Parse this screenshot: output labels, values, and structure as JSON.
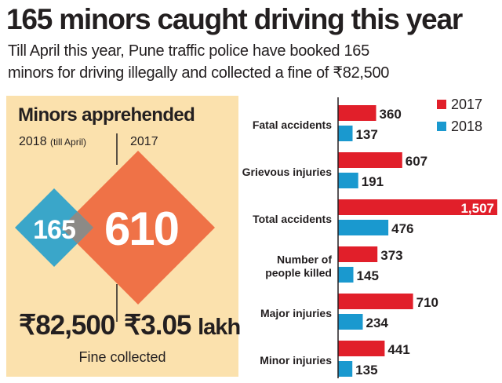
{
  "headline": "165 minors caught driving this year",
  "subheadline": {
    "line1": "Till April this year, Pune traffic police have booked 165",
    "line2": "minors for driving illegally and collected a fine of ₹82,500"
  },
  "panel": {
    "title": "Minors apprehended",
    "year_2018": "2018",
    "year_2018_note": "(till April)",
    "year_2017": "2017",
    "count_2018": "165",
    "count_2017": "610",
    "fine_2018": "₹82,500",
    "fine_2017_amount": "₹3.05",
    "fine_2017_unit": "lakh",
    "fine_label": "Fine collected",
    "colors": {
      "diamond_2018": "#3aa6c9",
      "diamond_2017": "#ef7247",
      "overlap": "#8c8a86",
      "background": "#fbe1ad"
    }
  },
  "chart_data": {
    "type": "bar",
    "orientation": "horizontal",
    "categories": [
      [
        "Fatal accidents"
      ],
      [
        "Grievous injuries"
      ],
      [
        "Total accidents"
      ],
      [
        "Number of",
        "people killed"
      ],
      [
        "Major injuries"
      ],
      [
        "Minor injuries"
      ]
    ],
    "series": [
      {
        "name": "2017",
        "color": "#e11f2a",
        "values": [
          360,
          607,
          1507,
          373,
          710,
          441
        ],
        "labels": [
          "360",
          "607",
          "1,507",
          "373",
          "710",
          "441"
        ]
      },
      {
        "name": "2018",
        "color": "#1a99cf",
        "values": [
          137,
          191,
          476,
          145,
          234,
          135
        ],
        "labels": [
          "137",
          "191",
          "476",
          "145",
          "234",
          "135"
        ]
      }
    ],
    "xlim": [
      0,
      1507
    ],
    "legend_position": "top-right",
    "grid": false
  }
}
